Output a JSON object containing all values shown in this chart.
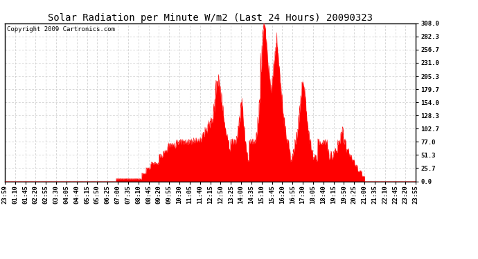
{
  "title": "Solar Radiation per Minute W/m2 (Last 24 Hours) 20090323",
  "copyright": "Copyright 2009 Cartronics.com",
  "y_ticks": [
    0.0,
    25.7,
    51.3,
    77.0,
    102.7,
    128.3,
    154.0,
    179.7,
    205.3,
    231.0,
    256.7,
    282.3,
    308.0
  ],
  "y_max": 308.0,
  "fill_color": "#FF0000",
  "line_color": "#FF0000",
  "dashed_line_color": "#FF0000",
  "grid_color": "#C8C8C8",
  "background_color": "#FFFFFF",
  "title_fontsize": 10,
  "copyright_fontsize": 6.5,
  "tick_fontsize": 6.5,
  "solar_data": [
    [
      0,
      390,
      0
    ],
    [
      390,
      480,
      5
    ],
    [
      480,
      495,
      15
    ],
    [
      495,
      510,
      25
    ],
    [
      510,
      540,
      35
    ],
    [
      540,
      555,
      50
    ],
    [
      555,
      570,
      60
    ],
    [
      570,
      600,
      70
    ],
    [
      600,
      660,
      77
    ],
    [
      660,
      690,
      80
    ],
    [
      690,
      700,
      90
    ],
    [
      700,
      710,
      100
    ],
    [
      710,
      720,
      110
    ],
    [
      720,
      730,
      120
    ],
    [
      730,
      735,
      140
    ],
    [
      735,
      740,
      160
    ],
    [
      740,
      745,
      185
    ],
    [
      745,
      748,
      195
    ],
    [
      748,
      750,
      200
    ],
    [
      750,
      752,
      195
    ],
    [
      752,
      755,
      185
    ],
    [
      755,
      760,
      165
    ],
    [
      760,
      765,
      140
    ],
    [
      765,
      770,
      120
    ],
    [
      770,
      775,
      100
    ],
    [
      775,
      780,
      90
    ],
    [
      780,
      785,
      77
    ],
    [
      785,
      790,
      60
    ],
    [
      790,
      795,
      77
    ],
    [
      795,
      810,
      77
    ],
    [
      810,
      815,
      85
    ],
    [
      815,
      820,
      100
    ],
    [
      820,
      825,
      120
    ],
    [
      825,
      830,
      145
    ],
    [
      830,
      832,
      160
    ],
    [
      832,
      834,
      145
    ],
    [
      834,
      836,
      120
    ],
    [
      836,
      840,
      100
    ],
    [
      840,
      845,
      77
    ],
    [
      845,
      850,
      60
    ],
    [
      850,
      855,
      40
    ],
    [
      855,
      860,
      77
    ],
    [
      860,
      880,
      77
    ],
    [
      880,
      885,
      90
    ],
    [
      885,
      890,
      120
    ],
    [
      890,
      895,
      160
    ],
    [
      895,
      900,
      220
    ],
    [
      900,
      903,
      255
    ],
    [
      903,
      906,
      280
    ],
    [
      906,
      908,
      295
    ],
    [
      908,
      910,
      308
    ],
    [
      910,
      912,
      300
    ],
    [
      912,
      915,
      285
    ],
    [
      915,
      918,
      265
    ],
    [
      918,
      922,
      240
    ],
    [
      922,
      926,
      220
    ],
    [
      926,
      930,
      200
    ],
    [
      930,
      935,
      180
    ],
    [
      935,
      938,
      195
    ],
    [
      938,
      942,
      215
    ],
    [
      942,
      946,
      235
    ],
    [
      946,
      950,
      255
    ],
    [
      950,
      953,
      270
    ],
    [
      953,
      956,
      255
    ],
    [
      956,
      960,
      235
    ],
    [
      960,
      964,
      210
    ],
    [
      964,
      968,
      185
    ],
    [
      968,
      972,
      160
    ],
    [
      972,
      976,
      140
    ],
    [
      976,
      980,
      120
    ],
    [
      980,
      985,
      100
    ],
    [
      985,
      990,
      80
    ],
    [
      990,
      995,
      77
    ],
    [
      995,
      1000,
      60
    ],
    [
      1000,
      1005,
      40
    ],
    [
      1005,
      1010,
      50
    ],
    [
      1010,
      1015,
      60
    ],
    [
      1015,
      1020,
      77
    ],
    [
      1020,
      1025,
      90
    ],
    [
      1025,
      1028,
      100
    ],
    [
      1028,
      1031,
      120
    ],
    [
      1031,
      1034,
      140
    ],
    [
      1034,
      1037,
      160
    ],
    [
      1037,
      1040,
      175
    ],
    [
      1040,
      1043,
      185
    ],
    [
      1043,
      1046,
      195
    ],
    [
      1046,
      1049,
      185
    ],
    [
      1049,
      1052,
      170
    ],
    [
      1052,
      1055,
      155
    ],
    [
      1055,
      1058,
      135
    ],
    [
      1058,
      1062,
      115
    ],
    [
      1062,
      1066,
      95
    ],
    [
      1066,
      1072,
      77
    ],
    [
      1072,
      1078,
      60
    ],
    [
      1078,
      1085,
      45
    ],
    [
      1085,
      1090,
      50
    ],
    [
      1090,
      1095,
      40
    ],
    [
      1095,
      1100,
      77
    ],
    [
      1100,
      1130,
      77
    ],
    [
      1130,
      1135,
      60
    ],
    [
      1135,
      1140,
      45
    ],
    [
      1140,
      1145,
      55
    ],
    [
      1145,
      1150,
      45
    ],
    [
      1150,
      1155,
      55
    ],
    [
      1155,
      1165,
      60
    ],
    [
      1165,
      1175,
      77
    ],
    [
      1175,
      1180,
      90
    ],
    [
      1180,
      1185,
      100
    ],
    [
      1185,
      1195,
      77
    ],
    [
      1195,
      1205,
      60
    ],
    [
      1205,
      1215,
      50
    ],
    [
      1215,
      1225,
      40
    ],
    [
      1225,
      1235,
      30
    ],
    [
      1235,
      1250,
      20
    ],
    [
      1250,
      1260,
      10
    ],
    [
      1260,
      1440,
      0
    ]
  ],
  "x_labels": [
    "23:59",
    "01:10",
    "01:45",
    "02:20",
    "02:55",
    "03:30",
    "04:05",
    "04:40",
    "05:15",
    "05:50",
    "06:25",
    "07:00",
    "07:35",
    "08:10",
    "08:45",
    "09:20",
    "09:55",
    "10:30",
    "11:05",
    "11:40",
    "12:15",
    "12:50",
    "13:25",
    "14:00",
    "14:35",
    "15:10",
    "15:45",
    "16:20",
    "16:55",
    "17:30",
    "18:05",
    "18:40",
    "19:15",
    "19:50",
    "20:25",
    "21:00",
    "21:35",
    "22:10",
    "22:45",
    "23:20",
    "23:55"
  ]
}
